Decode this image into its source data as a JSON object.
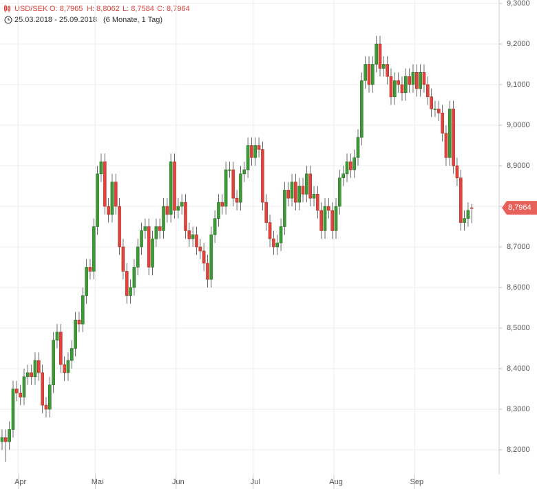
{
  "chart_data": {
    "type": "candlestick",
    "symbol": "USD/SEK",
    "ohlc_text": [
      "O: 8,7965",
      "H: 8,8062",
      "L: 8,7584",
      "C: 8,7964"
    ],
    "date_range": "25.03.2018 - 25.09.2018",
    "period": "(6 Monate, 1 Tag)",
    "last_price_label": "8,7964",
    "up_color": "#3d9b35",
    "down_color": "#e0443c",
    "grid": true,
    "ylim": [
      8.15,
      9.3
    ],
    "yticks": [
      {
        "value": 8.2,
        "label": "8,2000"
      },
      {
        "value": 8.3,
        "label": "8,3000"
      },
      {
        "value": 8.4,
        "label": "8,4000"
      },
      {
        "value": 8.5,
        "label": "8,5000"
      },
      {
        "value": 8.6,
        "label": "8,6000"
      },
      {
        "value": 8.7,
        "label": "8,7000"
      },
      {
        "value": 8.8,
        "label": "8,8000"
      },
      {
        "value": 8.9,
        "label": "8,9000"
      },
      {
        "value": 9.0,
        "label": "9,0000"
      },
      {
        "value": 9.1,
        "label": "9,1000"
      },
      {
        "value": 9.2,
        "label": "9,2000"
      },
      {
        "value": 9.3,
        "label": "9,3000"
      }
    ],
    "categories": [
      null,
      null,
      null,
      null,
      null,
      "Apr",
      null,
      null,
      null,
      null,
      null,
      null,
      null,
      null,
      null,
      null,
      null,
      null,
      null,
      null,
      null,
      null,
      null,
      null,
      null,
      null,
      "Mai",
      null,
      null,
      null,
      null,
      null,
      null,
      null,
      null,
      null,
      null,
      null,
      null,
      null,
      null,
      null,
      null,
      null,
      null,
      null,
      null,
      null,
      "Jun",
      null,
      null,
      null,
      null,
      null,
      null,
      null,
      null,
      null,
      null,
      null,
      null,
      null,
      null,
      null,
      null,
      null,
      null,
      null,
      null,
      "Jul",
      null,
      null,
      null,
      null,
      null,
      null,
      null,
      null,
      null,
      null,
      null,
      null,
      null,
      null,
      null,
      null,
      null,
      null,
      null,
      null,
      null,
      "Aug",
      null,
      null,
      null,
      null,
      null,
      null,
      null,
      null,
      null,
      null,
      null,
      null,
      null,
      null,
      null,
      null,
      null,
      null,
      null,
      null,
      null,
      "Sep",
      null,
      null,
      null,
      null,
      null,
      null,
      null,
      null,
      null,
      null,
      null,
      null,
      null,
      null,
      null
    ],
    "open": [
      8.22,
      8.23,
      8.22,
      8.25,
      8.35,
      8.34,
      8.33,
      8.38,
      8.39,
      8.38,
      8.42,
      8.39,
      8.31,
      8.3,
      8.36,
      8.47,
      8.49,
      8.41,
      8.39,
      8.42,
      8.45,
      8.52,
      8.51,
      8.58,
      8.65,
      8.64,
      8.75,
      8.88,
      8.91,
      8.8,
      8.78,
      8.86,
      8.8,
      8.7,
      8.64,
      8.58,
      8.6,
      8.65,
      8.7,
      8.74,
      8.75,
      8.65,
      8.72,
      8.75,
      8.74,
      8.8,
      8.78,
      8.91,
      8.79,
      8.8,
      8.81,
      8.74,
      8.72,
      8.73,
      8.7,
      8.69,
      8.66,
      8.62,
      8.73,
      8.77,
      8.81,
      8.8,
      8.89,
      8.89,
      8.82,
      8.81,
      8.88,
      8.89,
      8.95,
      8.92,
      8.95,
      8.94,
      8.81,
      8.76,
      8.72,
      8.7,
      8.71,
      8.75,
      8.84,
      8.82,
      8.86,
      8.81,
      8.85,
      8.83,
      8.88,
      8.82,
      8.83,
      8.79,
      8.74,
      8.8,
      8.79,
      8.74,
      8.8,
      8.87,
      8.88,
      8.91,
      8.89,
      8.92,
      8.97,
      9.11,
      9.15,
      9.1,
      9.15,
      9.2,
      9.14,
      9.15,
      9.12,
      9.07,
      9.11,
      9.1,
      9.08,
      9.12,
      9.1,
      9.13,
      9.09,
      9.13,
      9.1,
      9.07,
      9.04,
      9.04,
      9.03,
      8.98,
      8.92,
      9.04,
      8.9,
      8.87,
      8.76,
      8.77,
      8.7965
    ],
    "high": [
      8.25,
      8.25,
      8.27,
      8.37,
      8.37,
      8.36,
      8.4,
      8.41,
      8.41,
      8.44,
      8.44,
      8.41,
      8.33,
      8.38,
      8.49,
      8.51,
      8.51,
      8.43,
      8.44,
      8.47,
      8.54,
      8.54,
      8.6,
      8.67,
      8.67,
      8.77,
      8.9,
      8.93,
      8.93,
      8.82,
      8.88,
      8.88,
      8.82,
      8.72,
      8.66,
      8.62,
      8.67,
      8.72,
      8.76,
      8.77,
      8.77,
      8.74,
      8.77,
      8.77,
      8.82,
      8.82,
      8.93,
      8.93,
      8.82,
      8.83,
      8.83,
      8.76,
      8.75,
      8.75,
      8.72,
      8.71,
      8.68,
      8.75,
      8.79,
      8.83,
      8.83,
      8.91,
      8.91,
      8.91,
      8.84,
      8.9,
      8.91,
      8.97,
      8.97,
      8.97,
      8.97,
      8.96,
      8.83,
      8.78,
      8.74,
      8.73,
      8.77,
      8.86,
      8.86,
      8.88,
      8.88,
      8.87,
      8.87,
      8.9,
      8.9,
      8.85,
      8.85,
      8.81,
      8.82,
      8.82,
      8.81,
      8.82,
      8.89,
      8.9,
      8.93,
      8.93,
      8.94,
      8.99,
      9.13,
      9.17,
      9.17,
      9.17,
      9.22,
      9.22,
      9.17,
      9.17,
      9.14,
      9.13,
      9.13,
      9.12,
      9.14,
      9.14,
      9.15,
      9.15,
      9.15,
      9.15,
      9.12,
      9.09,
      9.06,
      9.06,
      9.05,
      9.0,
      9.06,
      9.06,
      8.92,
      8.89,
      8.79,
      8.81,
      8.8062
    ],
    "low": [
      8.2,
      8.17,
      8.2,
      8.23,
      8.32,
      8.31,
      8.31,
      8.36,
      8.36,
      8.36,
      8.37,
      8.29,
      8.28,
      8.28,
      8.34,
      8.45,
      8.39,
      8.37,
      8.37,
      8.4,
      8.43,
      8.49,
      8.49,
      8.56,
      8.62,
      8.62,
      8.73,
      8.86,
      8.78,
      8.76,
      8.76,
      8.78,
      8.68,
      8.62,
      8.56,
      8.56,
      8.58,
      8.63,
      8.68,
      8.72,
      8.63,
      8.63,
      8.7,
      8.72,
      8.72,
      8.76,
      8.76,
      8.77,
      8.77,
      8.78,
      8.72,
      8.7,
      8.7,
      8.68,
      8.67,
      8.64,
      8.6,
      8.6,
      8.71,
      8.75,
      8.78,
      8.78,
      8.87,
      8.8,
      8.79,
      8.79,
      8.86,
      8.87,
      8.9,
      8.9,
      8.92,
      8.79,
      8.74,
      8.7,
      8.68,
      8.68,
      8.69,
      8.73,
      8.8,
      8.8,
      8.79,
      8.79,
      8.81,
      8.81,
      8.8,
      8.8,
      8.77,
      8.72,
      8.72,
      8.77,
      8.72,
      8.72,
      8.78,
      8.85,
      8.86,
      8.87,
      8.87,
      8.9,
      8.95,
      9.09,
      9.08,
      9.08,
      9.13,
      9.12,
      9.12,
      9.1,
      9.05,
      9.05,
      9.08,
      9.06,
      9.06,
      9.08,
      9.08,
      9.07,
      9.07,
      9.08,
      9.05,
      9.02,
      9.02,
      9.01,
      8.96,
      8.9,
      8.9,
      8.88,
      8.85,
      8.74,
      8.74,
      8.75,
      8.7584
    ],
    "close": [
      8.23,
      8.22,
      8.25,
      8.35,
      8.34,
      8.33,
      8.38,
      8.39,
      8.38,
      8.42,
      8.39,
      8.31,
      8.3,
      8.36,
      8.47,
      8.49,
      8.41,
      8.39,
      8.42,
      8.45,
      8.52,
      8.51,
      8.58,
      8.65,
      8.64,
      8.75,
      8.88,
      8.91,
      8.8,
      8.78,
      8.86,
      8.8,
      8.7,
      8.64,
      8.58,
      8.6,
      8.65,
      8.7,
      8.74,
      8.75,
      8.65,
      8.72,
      8.75,
      8.74,
      8.8,
      8.78,
      8.91,
      8.79,
      8.8,
      8.81,
      8.74,
      8.72,
      8.73,
      8.7,
      8.69,
      8.66,
      8.62,
      8.73,
      8.77,
      8.81,
      8.8,
      8.89,
      8.89,
      8.82,
      8.81,
      8.88,
      8.89,
      8.95,
      8.92,
      8.95,
      8.94,
      8.81,
      8.76,
      8.72,
      8.7,
      8.71,
      8.75,
      8.84,
      8.82,
      8.86,
      8.81,
      8.85,
      8.83,
      8.88,
      8.82,
      8.83,
      8.79,
      8.74,
      8.8,
      8.79,
      8.74,
      8.8,
      8.87,
      8.88,
      8.91,
      8.89,
      8.92,
      8.97,
      9.11,
      9.15,
      9.1,
      9.15,
      9.2,
      9.14,
      9.15,
      9.12,
      9.07,
      9.11,
      9.1,
      9.08,
      9.12,
      9.1,
      9.13,
      9.09,
      9.13,
      9.1,
      9.07,
      9.04,
      9.04,
      9.03,
      8.98,
      8.92,
      9.04,
      8.9,
      8.87,
      8.76,
      8.77,
      8.79,
      8.7964
    ]
  }
}
